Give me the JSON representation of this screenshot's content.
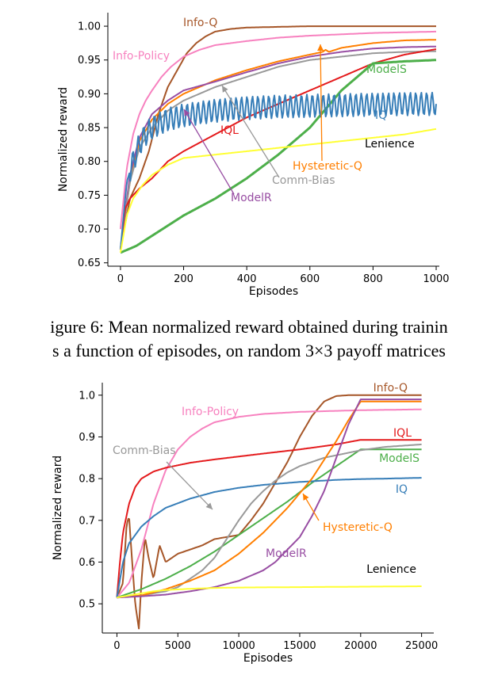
{
  "caption": {
    "line1": "igure 6: Mean normalized reward obtained during trainin",
    "line2": "s a function of episodes, on random 3×3 payoff matrices"
  },
  "chart_data": [
    {
      "type": "line",
      "xlabel": "Episodes",
      "ylabel": "Normalized reward",
      "xlim": [
        -40,
        1010
      ],
      "ylim": [
        0.645,
        1.02
      ],
      "xticks": [
        0,
        200,
        400,
        600,
        800,
        1000
      ],
      "yticks": [
        0.65,
        0.7,
        0.75,
        0.8,
        0.85,
        0.9,
        0.95,
        1.0
      ],
      "ytick_labels": [
        "0.65",
        "0.70",
        "0.75",
        "0.80",
        "0.85",
        "0.90",
        "0.95",
        "1.00"
      ],
      "grid": false,
      "series": [
        {
          "name": "Info-Q",
          "color": "#a65628",
          "x": [
            0,
            30,
            60,
            90,
            120,
            150,
            180,
            210,
            240,
            270,
            300,
            350,
            400,
            500,
            600,
            700,
            800,
            900,
            1000
          ],
          "y": [
            0.67,
            0.745,
            0.775,
            0.815,
            0.87,
            0.91,
            0.935,
            0.96,
            0.975,
            0.985,
            0.992,
            0.996,
            0.998,
            0.999,
            1.0,
            1.0,
            1.0,
            1.0,
            1.0
          ]
        },
        {
          "name": "Info-Policy",
          "color": "#f781bf",
          "x": [
            0,
            20,
            40,
            60,
            80,
            100,
            130,
            160,
            200,
            250,
            300,
            400,
            500,
            600,
            700,
            800,
            900,
            1000
          ],
          "y": [
            0.7,
            0.79,
            0.84,
            0.87,
            0.89,
            0.905,
            0.925,
            0.94,
            0.955,
            0.965,
            0.972,
            0.978,
            0.983,
            0.986,
            0.988,
            0.99,
            0.991,
            0.992
          ]
        },
        {
          "name": "Hysteretic-Q",
          "color": "#ff7f00",
          "x": [
            0,
            30,
            60,
            100,
            150,
            200,
            300,
            400,
            500,
            600,
            640,
            650,
            660,
            700,
            800,
            900,
            1000
          ],
          "y": [
            0.67,
            0.77,
            0.83,
            0.862,
            0.885,
            0.9,
            0.92,
            0.935,
            0.948,
            0.958,
            0.962,
            0.965,
            0.962,
            0.968,
            0.975,
            0.979,
            0.98
          ]
        },
        {
          "name": "ModelR",
          "color": "#984ea3",
          "x": [
            0,
            30,
            60,
            100,
            150,
            200,
            300,
            400,
            500,
            600,
            700,
            800,
            900,
            1000
          ],
          "y": [
            0.67,
            0.78,
            0.835,
            0.87,
            0.89,
            0.905,
            0.918,
            0.932,
            0.945,
            0.955,
            0.962,
            0.967,
            0.969,
            0.97
          ]
        },
        {
          "name": "Comm-Bias",
          "color": "#999999",
          "x": [
            0,
            30,
            60,
            100,
            150,
            200,
            250,
            300,
            400,
            500,
            600,
            700,
            800,
            900,
            1000
          ],
          "y": [
            0.67,
            0.77,
            0.82,
            0.85,
            0.875,
            0.89,
            0.9,
            0.91,
            0.925,
            0.94,
            0.95,
            0.955,
            0.96,
            0.962,
            0.963
          ]
        },
        {
          "name": "IQL",
          "color": "#e41a1c",
          "x": [
            0,
            15,
            30,
            60,
            100,
            150,
            200,
            300,
            400,
            500,
            600,
            700,
            800,
            900,
            1000
          ],
          "y": [
            0.67,
            0.73,
            0.745,
            0.76,
            0.775,
            0.8,
            0.815,
            0.84,
            0.865,
            0.885,
            0.905,
            0.925,
            0.945,
            0.958,
            0.966
          ]
        },
        {
          "name": "ModelS",
          "color": "#4daf4a",
          "x": [
            0,
            50,
            100,
            200,
            300,
            400,
            500,
            600,
            700,
            800,
            900,
            1000
          ],
          "y": [
            0.665,
            0.675,
            0.69,
            0.72,
            0.745,
            0.775,
            0.81,
            0.85,
            0.905,
            0.945,
            0.948,
            0.95
          ]
        },
        {
          "name": "IQ",
          "color": "#377eb8",
          "x": [
            0,
            20,
            40,
            60,
            80,
            100,
            150,
            200,
            300,
            400,
            500,
            600,
            700,
            800,
            900,
            1000
          ],
          "y": [
            0.67,
            0.77,
            0.8,
            0.825,
            0.84,
            0.85,
            0.862,
            0.868,
            0.875,
            0.879,
            0.881,
            0.882,
            0.883,
            0.884,
            0.885,
            0.885
          ],
          "oscillation": 0.017
        },
        {
          "name": "Lenience",
          "color": "#ffff33",
          "x": [
            0,
            20,
            40,
            70,
            100,
            150,
            200,
            300,
            400,
            500,
            600,
            700,
            800,
            900,
            1000
          ],
          "y": [
            0.665,
            0.72,
            0.745,
            0.765,
            0.78,
            0.795,
            0.805,
            0.81,
            0.815,
            0.82,
            0.825,
            0.83,
            0.835,
            0.84,
            0.848
          ]
        }
      ]
    },
    {
      "type": "line",
      "xlabel": "Episodes",
      "ylabel": "Normalized reward",
      "xlim": [
        -1200,
        26000
      ],
      "ylim": [
        0.43,
        1.03
      ],
      "xticks": [
        0,
        5000,
        10000,
        15000,
        20000,
        25000
      ],
      "yticks": [
        0.5,
        0.6,
        0.7,
        0.8,
        0.9,
        1.0
      ],
      "ytick_labels": [
        "0.5",
        "0.6",
        "0.7",
        "0.8",
        "0.9",
        "1.0"
      ],
      "grid": false,
      "series": [
        {
          "name": "Info-Q",
          "color": "#a65628",
          "x": [
            0,
            500,
            800,
            1000,
            1200,
            1500,
            1800,
            2000,
            2300,
            2600,
            3000,
            3500,
            4000,
            5000,
            6000,
            7000,
            8000,
            9000,
            10000,
            11000,
            12000,
            13000,
            14000,
            15000,
            16000,
            17000,
            18000,
            19000,
            20000,
            21000,
            25000
          ],
          "y": [
            0.515,
            0.55,
            0.69,
            0.71,
            0.62,
            0.5,
            0.44,
            0.55,
            0.66,
            0.61,
            0.56,
            0.64,
            0.6,
            0.62,
            0.63,
            0.64,
            0.655,
            0.66,
            0.665,
            0.7,
            0.74,
            0.79,
            0.84,
            0.9,
            0.95,
            0.985,
            0.998,
            1.0,
            1.0,
            1.0,
            1.0
          ]
        },
        {
          "name": "Info-Policy",
          "color": "#f781bf",
          "x": [
            0,
            1000,
            2000,
            3000,
            4000,
            5000,
            6000,
            7000,
            8000,
            10000,
            12000,
            15000,
            20000,
            25000
          ],
          "y": [
            0.515,
            0.55,
            0.63,
            0.74,
            0.82,
            0.87,
            0.9,
            0.92,
            0.935,
            0.948,
            0.955,
            0.96,
            0.964,
            0.966
          ]
        },
        {
          "name": "IQL",
          "color": "#e41a1c",
          "x": [
            0,
            250,
            500,
            1000,
            1500,
            2000,
            3000,
            4000,
            5000,
            6000,
            8000,
            10000,
            12000,
            15000,
            18000,
            20000,
            25000
          ],
          "y": [
            0.515,
            0.6,
            0.67,
            0.74,
            0.78,
            0.8,
            0.817,
            0.826,
            0.832,
            0.838,
            0.846,
            0.853,
            0.86,
            0.87,
            0.882,
            0.893,
            0.893
          ]
        },
        {
          "name": "ModelS",
          "color": "#4daf4a",
          "x": [
            0,
            2000,
            4000,
            6000,
            8000,
            10000,
            12000,
            14000,
            16000,
            18000,
            20000,
            25000
          ],
          "y": [
            0.515,
            0.535,
            0.56,
            0.59,
            0.625,
            0.665,
            0.705,
            0.745,
            0.79,
            0.83,
            0.87,
            0.87
          ]
        },
        {
          "name": "IQ",
          "color": "#377eb8",
          "x": [
            0,
            500,
            1000,
            2000,
            3000,
            4000,
            6000,
            8000,
            10000,
            12000,
            15000,
            18000,
            20000,
            22000,
            25000
          ],
          "y": [
            0.515,
            0.6,
            0.645,
            0.685,
            0.71,
            0.73,
            0.752,
            0.768,
            0.778,
            0.785,
            0.792,
            0.797,
            0.799,
            0.8,
            0.802
          ],
          "oscillation": 0.004
        },
        {
          "name": "Comm-Bias",
          "color": "#999999",
          "x": [
            0,
            2000,
            3000,
            4000,
            5000,
            6000,
            7000,
            8000,
            9000,
            10000,
            11000,
            12000,
            13000,
            14000,
            15000,
            17000,
            20000,
            22000,
            25000
          ],
          "y": [
            0.515,
            0.52,
            0.525,
            0.53,
            0.54,
            0.56,
            0.58,
            0.61,
            0.655,
            0.7,
            0.74,
            0.77,
            0.795,
            0.815,
            0.83,
            0.85,
            0.868,
            0.876,
            0.882
          ]
        },
        {
          "name": "Hysteretic-Q",
          "color": "#ff7f00",
          "x": [
            0,
            2000,
            4000,
            6000,
            8000,
            10000,
            12000,
            14000,
            16000,
            17000,
            18000,
            19000,
            20000,
            25000
          ],
          "y": [
            0.515,
            0.52,
            0.535,
            0.555,
            0.58,
            0.62,
            0.67,
            0.73,
            0.8,
            0.845,
            0.89,
            0.94,
            0.985,
            0.985
          ]
        },
        {
          "name": "ModelR",
          "color": "#984ea3",
          "x": [
            0,
            2000,
            4000,
            6000,
            8000,
            10000,
            12000,
            13000,
            14000,
            15000,
            16000,
            17000,
            18000,
            19000,
            20000,
            25000
          ],
          "y": [
            0.515,
            0.518,
            0.522,
            0.53,
            0.54,
            0.555,
            0.58,
            0.6,
            0.63,
            0.66,
            0.71,
            0.77,
            0.85,
            0.93,
            0.99,
            0.99
          ]
        },
        {
          "name": "Lenience",
          "color": "#ffff33",
          "x": [
            0,
            1000,
            2000,
            3000,
            4000,
            6000,
            8000,
            10000,
            15000,
            20000,
            25000
          ],
          "y": [
            0.515,
            0.52,
            0.525,
            0.53,
            0.533,
            0.536,
            0.538,
            0.539,
            0.54,
            0.541,
            0.542
          ]
        }
      ]
    }
  ]
}
